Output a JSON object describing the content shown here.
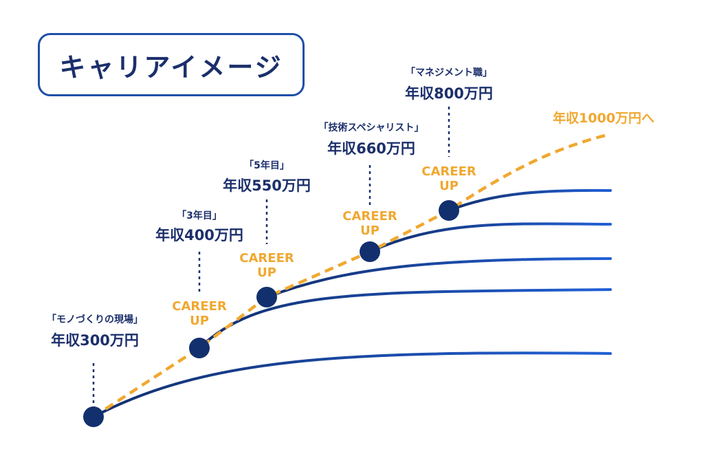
{
  "title": "キャリアイメージ",
  "stages": [
    {
      "name": "「モノづくりの現場」",
      "salary": "年収300万円"
    },
    {
      "name": "「3年目」",
      "salary": "年収400万円",
      "badge": "CAREER UP"
    },
    {
      "name": "「5年目」",
      "salary": "年収550万円",
      "badge": "CAREER UP"
    },
    {
      "name": "「技術スペシャリスト」",
      "salary": "年収660万円",
      "badge": "CAREER UP"
    },
    {
      "name": "「マネジメント職」",
      "salary": "年収800万円",
      "badge": "CAREER UP"
    }
  ],
  "career_up_line1": "CAREER",
  "career_up_line2": "UP",
  "goal": "年収1000万円へ",
  "colors": {
    "navy": "#1b2f6b",
    "curve_blue": "#1f56c4",
    "node": "#13306e",
    "accent_orange": "#f0a830"
  }
}
